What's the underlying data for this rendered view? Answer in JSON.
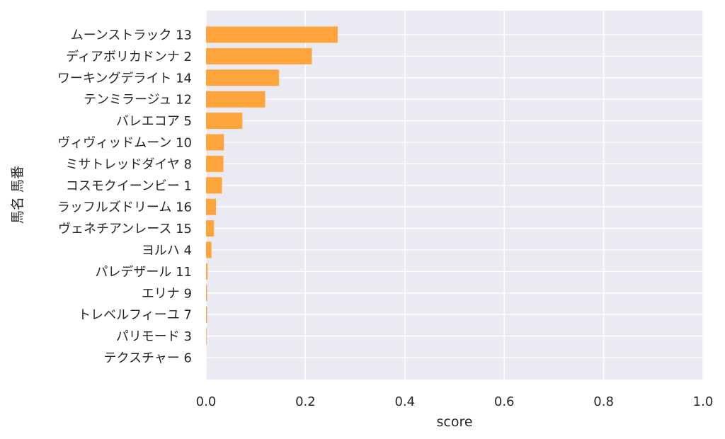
{
  "chart_data": {
    "type": "bar",
    "orientation": "horizontal",
    "categories": [
      "ムーンストラック 13",
      "ディアボリカドンナ 2",
      "ワーキングデライト 14",
      "テンミラージュ 12",
      "バレエコア 5",
      "ヴィヴィッドムーン 10",
      "ミサトレッドダイヤ 8",
      "コスモクイーンビー 1",
      "ラッフルズドリーム 16",
      "ヴェネチアンレース 15",
      "ヨルハ 4",
      "パレデザール 11",
      "エリナ 9",
      "トレベルフィーユ 7",
      "パリモード 3",
      "テクスチャー 6"
    ],
    "values": [
      0.265,
      0.213,
      0.147,
      0.119,
      0.073,
      0.036,
      0.035,
      0.032,
      0.02,
      0.016,
      0.011,
      0.003,
      0.002,
      0.002,
      0.001,
      0.0
    ],
    "xlabel": "score",
    "ylabel": "馬名 馬番",
    "xlim": [
      0.0,
      1.0
    ],
    "xticks": [
      "0.0",
      "0.2",
      "0.4",
      "0.6",
      "0.8",
      "1.0"
    ],
    "bar_color": "#ffa031",
    "background_color": "#eaeaf2",
    "grid": true
  }
}
